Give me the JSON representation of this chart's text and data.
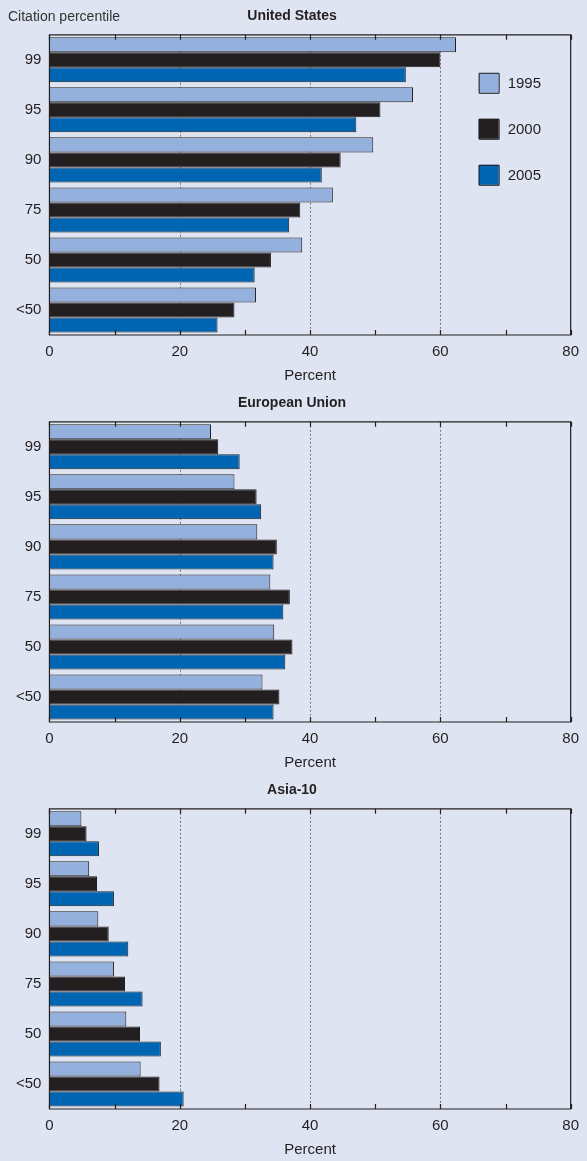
{
  "chart_data": [
    {
      "type": "bar",
      "orientation": "horizontal",
      "title": "United States",
      "ylabel": "Citation percentile",
      "xlabel": "Percent",
      "categories": [
        "99",
        "95",
        "90",
        "75",
        "50",
        "<50"
      ],
      "series": [
        {
          "name": "1995",
          "color": "#94b0dc",
          "values": [
            62.4,
            55.8,
            49.7,
            43.5,
            38.8,
            31.7
          ]
        },
        {
          "name": "2000",
          "color": "#231f20",
          "values": [
            60.0,
            50.8,
            44.7,
            38.5,
            34.0,
            28.4
          ]
        },
        {
          "name": "2005",
          "color": "#0066b3",
          "values": [
            54.7,
            47.1,
            41.8,
            36.8,
            31.5,
            25.8
          ]
        }
      ],
      "xlim": [
        0,
        80
      ],
      "xticks": [
        0,
        {
          "value": 10,
          "label": null
        },
        20,
        {
          "value": 30,
          "label": null
        },
        40,
        {
          "value": 50,
          "label": null
        },
        60,
        {
          "value": 70,
          "label": null
        },
        80
      ],
      "grid": "x",
      "legend": "right"
    },
    {
      "type": "bar",
      "orientation": "horizontal",
      "title": "European Union",
      "xlabel": "Percent",
      "categories": [
        "99",
        "95",
        "90",
        "75",
        "50",
        "<50"
      ],
      "series": [
        {
          "color": "#94b0dc",
          "values": [
            24.8,
            28.4,
            31.9,
            33.9,
            34.5,
            32.7
          ]
        },
        {
          "color": "#231f20",
          "values": [
            25.9,
            31.8,
            34.9,
            36.9,
            37.3,
            35.3
          ]
        },
        {
          "color": "#0066b3",
          "values": [
            29.2,
            32.5,
            34.4,
            35.9,
            36.2,
            34.4
          ]
        }
      ],
      "xlim": [
        0,
        80
      ],
      "xticks": [
        0,
        {
          "value": 10,
          "label": null
        },
        20,
        {
          "value": 30,
          "label": null
        },
        40,
        {
          "value": 50,
          "label": null
        },
        60,
        {
          "value": 70,
          "label": null
        },
        80
      ],
      "grid": "x"
    },
    {
      "type": "bar",
      "orientation": "horizontal",
      "title": "Asia-10",
      "xlabel": "Percent",
      "categories": [
        "99",
        "95",
        "90",
        "75",
        "50",
        "<50"
      ],
      "series": [
        {
          "color": "#94b0dc",
          "values": [
            4.9,
            6.1,
            7.5,
            9.9,
            11.8,
            14.0
          ]
        },
        {
          "color": "#231f20",
          "values": [
            5.7,
            7.3,
            9.1,
            11.6,
            13.9,
            16.9
          ]
        },
        {
          "color": "#0066b3",
          "values": [
            7.6,
            9.9,
            12.1,
            14.3,
            17.1,
            20.6
          ]
        }
      ],
      "xlim": [
        0,
        80
      ],
      "xticks": [
        0,
        {
          "value": 10,
          "label": null
        },
        20,
        {
          "value": 30,
          "label": null
        },
        40,
        {
          "value": 50,
          "label": null
        },
        60,
        {
          "value": 70,
          "label": null
        },
        80
      ],
      "grid": "x"
    }
  ]
}
